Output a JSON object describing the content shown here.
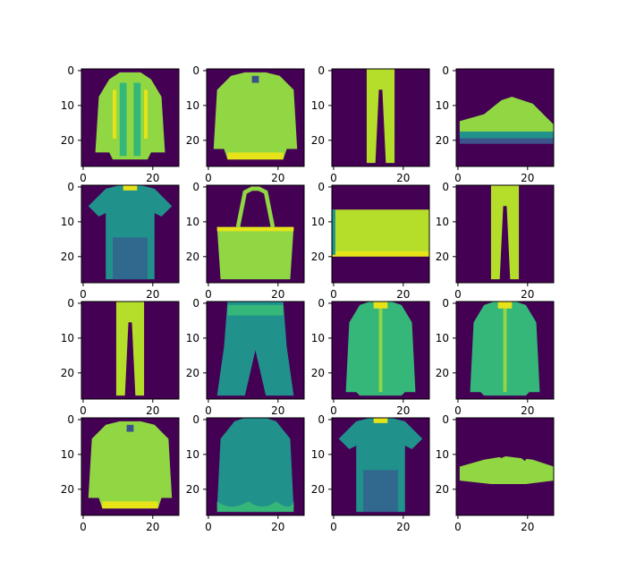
{
  "figure": {
    "grid": "4x4",
    "axis_color": "#000000",
    "background": "#ffffff"
  },
  "chart_data": [
    {
      "type": "heatmap",
      "image": "coat",
      "colormap": "viridis",
      "xlim": [
        -0.5,
        27.5
      ],
      "ylim": [
        27.5,
        -0.5
      ],
      "xticks": [
        0,
        20
      ],
      "yticks": [
        0,
        10,
        20
      ],
      "grid": false
    },
    {
      "type": "heatmap",
      "image": "pullover",
      "colormap": "viridis",
      "xlim": [
        -0.5,
        27.5
      ],
      "ylim": [
        27.5,
        -0.5
      ],
      "xticks": [
        0,
        20
      ],
      "yticks": [
        0,
        10,
        20
      ],
      "grid": false
    },
    {
      "type": "heatmap",
      "image": "trouser",
      "colormap": "viridis",
      "xlim": [
        -0.5,
        27.5
      ],
      "ylim": [
        27.5,
        -0.5
      ],
      "xticks": [
        0,
        20
      ],
      "yticks": [
        0,
        10,
        20
      ],
      "grid": false
    },
    {
      "type": "heatmap",
      "image": "sneaker",
      "colormap": "viridis",
      "xlim": [
        -0.5,
        27.5
      ],
      "ylim": [
        27.5,
        -0.5
      ],
      "xticks": [
        0,
        20
      ],
      "yticks": [
        0,
        10,
        20
      ],
      "grid": false
    },
    {
      "type": "heatmap",
      "image": "t-shirt",
      "colormap": "viridis",
      "xlim": [
        -0.5,
        27.5
      ],
      "ylim": [
        27.5,
        -0.5
      ],
      "xticks": [
        0,
        20
      ],
      "yticks": [
        0,
        10,
        20
      ],
      "grid": false
    },
    {
      "type": "heatmap",
      "image": "bag",
      "colormap": "viridis",
      "xlim": [
        -0.5,
        27.5
      ],
      "ylim": [
        27.5,
        -0.5
      ],
      "xticks": [
        0,
        20
      ],
      "yticks": [
        0,
        10,
        20
      ],
      "grid": false
    },
    {
      "type": "heatmap",
      "image": "bag-flat",
      "colormap": "viridis",
      "xlim": [
        -0.5,
        27.5
      ],
      "ylim": [
        27.5,
        -0.5
      ],
      "xticks": [
        0,
        20
      ],
      "yticks": [
        0,
        10,
        20
      ],
      "grid": false
    },
    {
      "type": "heatmap",
      "image": "trouser",
      "colormap": "viridis",
      "xlim": [
        -0.5,
        27.5
      ],
      "ylim": [
        27.5,
        -0.5
      ],
      "xticks": [
        0,
        20
      ],
      "yticks": [
        0,
        10,
        20
      ],
      "grid": false
    },
    {
      "type": "heatmap",
      "image": "trouser",
      "colormap": "viridis",
      "xlim": [
        -0.5,
        27.5
      ],
      "ylim": [
        27.5,
        -0.5
      ],
      "xticks": [
        0,
        20
      ],
      "yticks": [
        0,
        10,
        20
      ],
      "grid": false
    },
    {
      "type": "heatmap",
      "image": "shorts",
      "colormap": "viridis",
      "xlim": [
        -0.5,
        27.5
      ],
      "ylim": [
        27.5,
        -0.5
      ],
      "xticks": [
        0,
        20
      ],
      "yticks": [
        0,
        10,
        20
      ],
      "grid": false
    },
    {
      "type": "heatmap",
      "image": "shirt",
      "colormap": "viridis",
      "xlim": [
        -0.5,
        27.5
      ],
      "ylim": [
        27.5,
        -0.5
      ],
      "xticks": [
        0,
        20
      ],
      "yticks": [
        0,
        10,
        20
      ],
      "grid": false
    },
    {
      "type": "heatmap",
      "image": "shirt",
      "colormap": "viridis",
      "xlim": [
        -0.5,
        27.5
      ],
      "ylim": [
        27.5,
        -0.5
      ],
      "xticks": [
        0,
        20
      ],
      "yticks": [
        0,
        10,
        20
      ],
      "grid": false
    },
    {
      "type": "heatmap",
      "image": "pullover",
      "colormap": "viridis",
      "xlim": [
        -0.5,
        27.5
      ],
      "ylim": [
        27.5,
        -0.5
      ],
      "xticks": [
        0,
        20
      ],
      "yticks": [
        0,
        10,
        20
      ],
      "grid": false
    },
    {
      "type": "heatmap",
      "image": "blouse",
      "colormap": "viridis",
      "xlim": [
        -0.5,
        27.5
      ],
      "ylim": [
        27.5,
        -0.5
      ],
      "xticks": [
        0,
        20
      ],
      "yticks": [
        0,
        10,
        20
      ],
      "grid": false
    },
    {
      "type": "heatmap",
      "image": "t-shirt",
      "colormap": "viridis",
      "xlim": [
        -0.5,
        27.5
      ],
      "ylim": [
        27.5,
        -0.5
      ],
      "xticks": [
        0,
        20
      ],
      "yticks": [
        0,
        10,
        20
      ],
      "grid": false
    },
    {
      "type": "heatmap",
      "image": "sandal",
      "colormap": "viridis",
      "xlim": [
        -0.5,
        27.5
      ],
      "ylim": [
        27.5,
        -0.5
      ],
      "xticks": [
        0,
        20
      ],
      "yticks": [
        0,
        10,
        20
      ],
      "grid": false
    }
  ],
  "colors": {
    "background": "#440154",
    "dark": "#3b528b",
    "blue": "#31688e",
    "teal": "#21918c",
    "green": "#35b779",
    "lime": "#90d743",
    "yellow_green": "#b5de2b",
    "yellow": "#e6e419",
    "bright": "#fde725"
  }
}
